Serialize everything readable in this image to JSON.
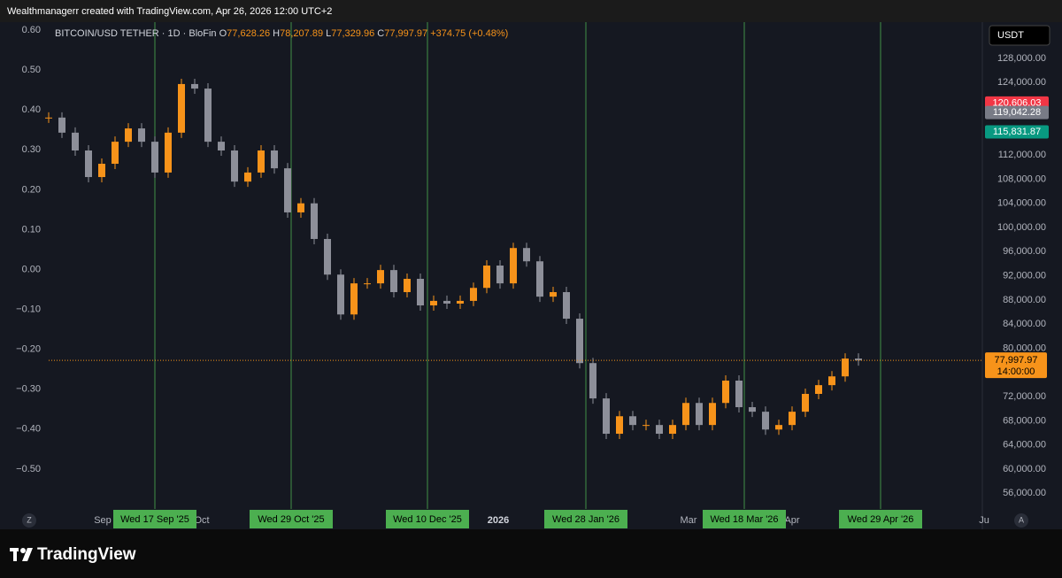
{
  "header": "Wealthmanagerr created with TradingView.com, Apr 26, 2026 12:00 UTC+2",
  "footer": "TradingView",
  "chart_data": {
    "type": "candlestick",
    "symbol": "BITCOIN/USD TETHER · 1D · BloFin",
    "legend": [
      {
        "key": "O",
        "value": "77,628.26"
      },
      {
        "key": "H",
        "value": "78,207.89"
      },
      {
        "key": "L",
        "value": "77,329.96"
      },
      {
        "key": "C",
        "value": "77,997.97"
      }
    ],
    "change": "+374.75 (+0.48%)",
    "currency": "USDT",
    "up_color": "#f7931a",
    "down_color": "#8d8f99",
    "values": [
      118200,
      115700,
      112750,
      108350,
      110550,
      114200,
      116400,
      114200,
      109100,
      115700,
      123750,
      123000,
      114200,
      112750,
      107600,
      109100,
      112750,
      109800,
      102500,
      104000,
      98100,
      92200,
      85600,
      90750,
      90750,
      92950,
      89300,
      91500,
      87100,
      87850,
      87400,
      87850,
      90000,
      93700,
      90750,
      96600,
      94400,
      88550,
      89300,
      84900,
      77550,
      71700,
      65850,
      68750,
      67300,
      67300,
      65850,
      67300,
      70950,
      67300,
      70950,
      74650,
      70250,
      69500,
      66550,
      67300,
      69500,
      72450,
      73900,
      75350,
      78300,
      78000
    ],
    "ylim": [
      53400,
      134000
    ],
    "yticks": [
      {
        "value": 56000,
        "label": "56,000.00"
      },
      {
        "value": 60000,
        "label": "60,000.00"
      },
      {
        "value": 64000,
        "label": "64,000.00"
      },
      {
        "value": 68000,
        "label": "68,000.00"
      },
      {
        "value": 72000,
        "label": "72,000.00"
      },
      {
        "value": 76000,
        "label": "76,000.00"
      },
      {
        "value": 80000,
        "label": "80,000.00"
      },
      {
        "value": 84000,
        "label": "84,000.00"
      },
      {
        "value": 88000,
        "label": "88,000.00"
      },
      {
        "value": 92000,
        "label": "92,000.00"
      },
      {
        "value": 96000,
        "label": "96,000.00"
      },
      {
        "value": 100000,
        "label": "100,000.00"
      },
      {
        "value": 104000,
        "label": "104,000.00"
      },
      {
        "value": 108000,
        "label": "108,000.00"
      },
      {
        "value": 112000,
        "label": "112,000.00"
      },
      {
        "value": 124000,
        "label": "124,000.00"
      },
      {
        "value": 128000,
        "label": "128,000.00"
      }
    ],
    "y2lim": [
      -0.6,
      0.62
    ],
    "y2ticks": [
      {
        "value": -0.5,
        "label": "−0.50"
      },
      {
        "value": -0.4,
        "label": "−0.40"
      },
      {
        "value": -0.3,
        "label": "−0.30"
      },
      {
        "value": -0.2,
        "label": "−0.20"
      },
      {
        "value": -0.1,
        "label": "−0.10"
      },
      {
        "value": 0,
        "label": "0.00"
      },
      {
        "value": 0.1,
        "label": "0.10"
      },
      {
        "value": 0.2,
        "label": "0.20"
      },
      {
        "value": 0.3,
        "label": "0.30"
      },
      {
        "value": 0.4,
        "label": "0.40"
      },
      {
        "value": 0.5,
        "label": "0.50"
      },
      {
        "value": 0.6,
        "label": "0.60"
      }
    ],
    "price_tags": [
      {
        "value": 120606.03,
        "label": "120,606.03",
        "color": "#f23645"
      },
      {
        "value": 119042.28,
        "label": "119,042.28",
        "color": "#787b86"
      },
      {
        "value": 115831.87,
        "label": "115,831.87",
        "color": "#089981"
      },
      {
        "value": 77997.97,
        "label": "77,997.97",
        "sub": "14:00:00",
        "color": "#f7931a"
      }
    ],
    "x_labels": [
      "Sep",
      "Oct",
      "2026",
      "Mar",
      "Apr",
      "Ju"
    ],
    "markers": [
      "Wed 17 Sep '25",
      "Wed 29 Oct '25",
      "Wed 10 Dec '25",
      "Wed 28 Jan '26",
      "Wed 18 Mar '26",
      "Wed 29 Apr '26"
    ],
    "marker_color": "#4caf50",
    "buttons": [
      "Z",
      "A"
    ]
  }
}
